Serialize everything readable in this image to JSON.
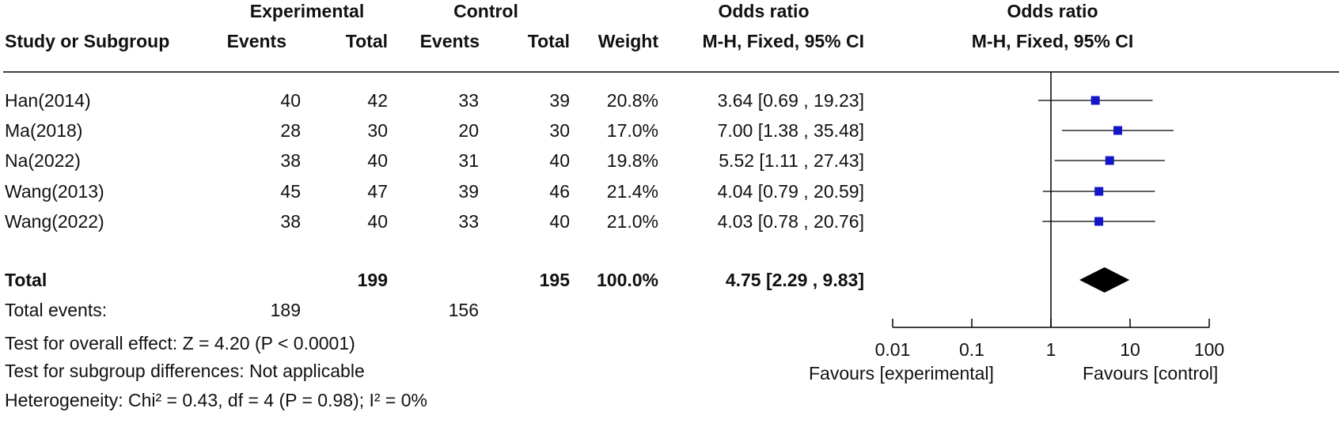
{
  "headers": {
    "group_experimental": "Experimental",
    "group_control": "Control",
    "group_odds_ratio": "Odds ratio",
    "plot_title": "Odds ratio",
    "study": "Study or Subgroup",
    "exp_events": "Events",
    "exp_total": "Total",
    "ctl_events": "Events",
    "ctl_total": "Total",
    "weight": "Weight",
    "method": "M-H, Fixed, 95% CI",
    "plot_method": "M-H, Fixed, 95% CI"
  },
  "studies": [
    {
      "name": "Han(2014)",
      "exp_events": "40",
      "exp_total": "42",
      "ctl_events": "33",
      "ctl_total": "39",
      "weight": "20.8%",
      "ci_text": "3.64 [0.69 , 19.23]"
    },
    {
      "name": "Ma(2018)",
      "exp_events": "28",
      "exp_total": "30",
      "ctl_events": "20",
      "ctl_total": "30",
      "weight": "17.0%",
      "ci_text": "7.00 [1.38 , 35.48]"
    },
    {
      "name": "Na(2022)",
      "exp_events": "38",
      "exp_total": "40",
      "ctl_events": "31",
      "ctl_total": "40",
      "weight": "19.8%",
      "ci_text": "5.52 [1.11 , 27.43]"
    },
    {
      "name": "Wang(2013)",
      "exp_events": "45",
      "exp_total": "47",
      "ctl_events": "39",
      "ctl_total": "46",
      "weight": "21.4%",
      "ci_text": "4.04 [0.79 , 20.59]"
    },
    {
      "name": "Wang(2022)",
      "exp_events": "38",
      "exp_total": "40",
      "ctl_events": "33",
      "ctl_total": "40",
      "weight": "21.0%",
      "ci_text": "4.03 [0.78 , 20.76]"
    }
  ],
  "total": {
    "label": "Total",
    "exp_total": "199",
    "ctl_total": "195",
    "weight": "100.0%",
    "ci_text": "4.75 [2.29 , 9.83]",
    "events_label": "Total events:",
    "exp_events": "189",
    "ctl_events": "156"
  },
  "notes": {
    "overall_effect": "Test for overall effect: Z = 4.20 (P < 0.0001)",
    "subgroup": "Test for subgroup differences: Not applicable",
    "heterogeneity": "Heterogeneity: Chi² = 0.43, df = 4 (P = 0.98); I² = 0%"
  },
  "axis": {
    "favours_left": "Favours [experimental]",
    "favours_right": "Favours [control]"
  },
  "colors": {
    "study_marker": "#1515c8",
    "pooled_diamond": "#000000",
    "lines": "#000000"
  },
  "chart_data": {
    "type": "forest",
    "scale": "log",
    "xlim": [
      0.01,
      100
    ],
    "reference_line": 1,
    "ticks": [
      {
        "value": 0.01,
        "label": "0.01"
      },
      {
        "value": 0.1,
        "label": "0.1"
      },
      {
        "value": 1,
        "label": "1"
      },
      {
        "value": 10,
        "label": "10"
      },
      {
        "value": 100,
        "label": "100"
      }
    ],
    "points": [
      {
        "label": "Han(2014)",
        "or": 3.64,
        "lower": 0.69,
        "upper": 19.23
      },
      {
        "label": "Ma(2018)",
        "or": 7.0,
        "lower": 1.38,
        "upper": 35.48
      },
      {
        "label": "Na(2022)",
        "or": 5.52,
        "lower": 1.11,
        "upper": 27.43
      },
      {
        "label": "Wang(2013)",
        "or": 4.04,
        "lower": 0.79,
        "upper": 20.59
      },
      {
        "label": "Wang(2022)",
        "or": 4.03,
        "lower": 0.78,
        "upper": 20.76
      }
    ],
    "pooled": {
      "label": "Total",
      "or": 4.75,
      "lower": 2.29,
      "upper": 9.83
    }
  }
}
